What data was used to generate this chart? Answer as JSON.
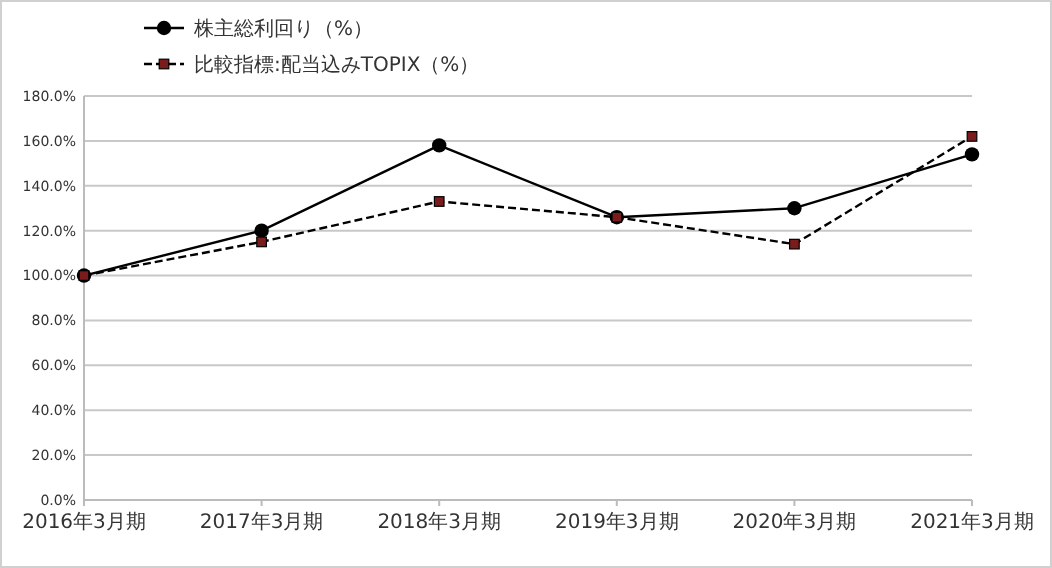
{
  "chart_data": {
    "type": "line",
    "categories": [
      "2016年3月期",
      "2017年3月期",
      "2018年3月期",
      "2019年3月期",
      "2020年3月期",
      "2021年3月期"
    ],
    "series": [
      {
        "name": "株主総利回り（%）",
        "color": "#000000",
        "marker": "circle",
        "line_style": "solid",
        "values": [
          100,
          120,
          158,
          126,
          130,
          154
        ]
      },
      {
        "name": "比較指標:配当込みTOPIX（%）",
        "color": "#000000",
        "marker": "square",
        "line_style": "dashed",
        "values": [
          100,
          115,
          133,
          126,
          114,
          162
        ]
      }
    ],
    "ylim": [
      0,
      180
    ],
    "yticks": [
      {
        "value": 0,
        "label": "0.0%"
      },
      {
        "value": 20,
        "label": "20.0%"
      },
      {
        "value": 40,
        "label": "40.0%"
      },
      {
        "value": 60,
        "label": "60.0%"
      },
      {
        "value": 80,
        "label": "80.0%"
      },
      {
        "value": 100,
        "label": "100.0%"
      },
      {
        "value": 120,
        "label": "120.0%"
      },
      {
        "value": 140,
        "label": "140.0%"
      },
      {
        "value": 160,
        "label": "160.0%"
      },
      {
        "value": 180,
        "label": "180.0%"
      }
    ],
    "grid": "y",
    "legend": "top left"
  }
}
